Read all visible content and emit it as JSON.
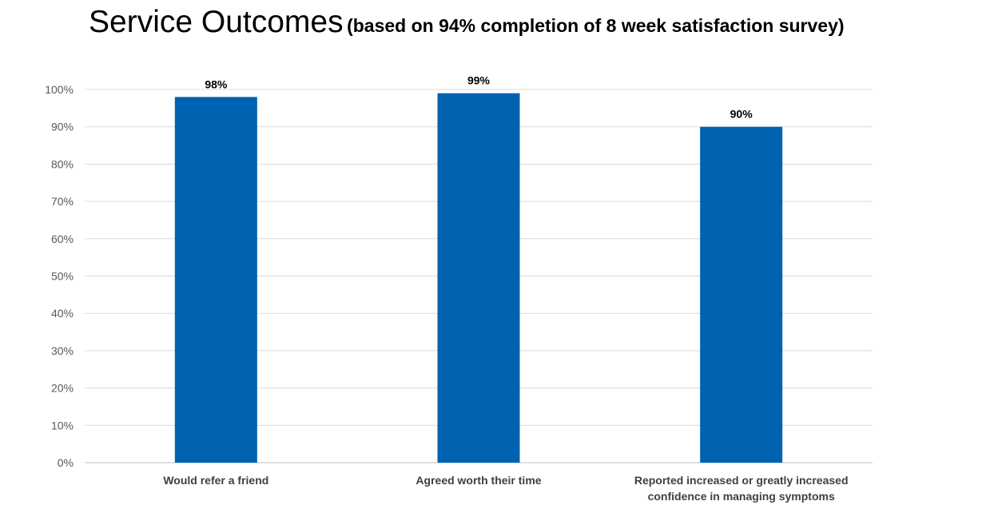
{
  "chart_data": {
    "type": "bar",
    "title": "Service Outcomes",
    "subtitle": "(based on 94% completion of 8 week satisfaction survey)",
    "categories": [
      [
        "Would refer a friend"
      ],
      [
        "Agreed worth their time"
      ],
      [
        "Reported increased or greatly increased",
        "confidence in managing symptoms"
      ]
    ],
    "values": [
      98,
      99,
      90
    ],
    "data_labels": [
      "98%",
      "99%",
      "90%"
    ],
    "ylim": [
      0,
      100
    ],
    "yticks": [
      0,
      10,
      20,
      30,
      40,
      50,
      60,
      70,
      80,
      90,
      100
    ],
    "ytick_labels": [
      "0%",
      "10%",
      "20%",
      "30%",
      "40%",
      "50%",
      "60%",
      "70%",
      "80%",
      "90%",
      "100%"
    ],
    "xlabel": "",
    "ylabel": "",
    "grid": true,
    "legend": "none",
    "bar_color": "#0063B1",
    "grid_color": "#D9D9D9"
  }
}
